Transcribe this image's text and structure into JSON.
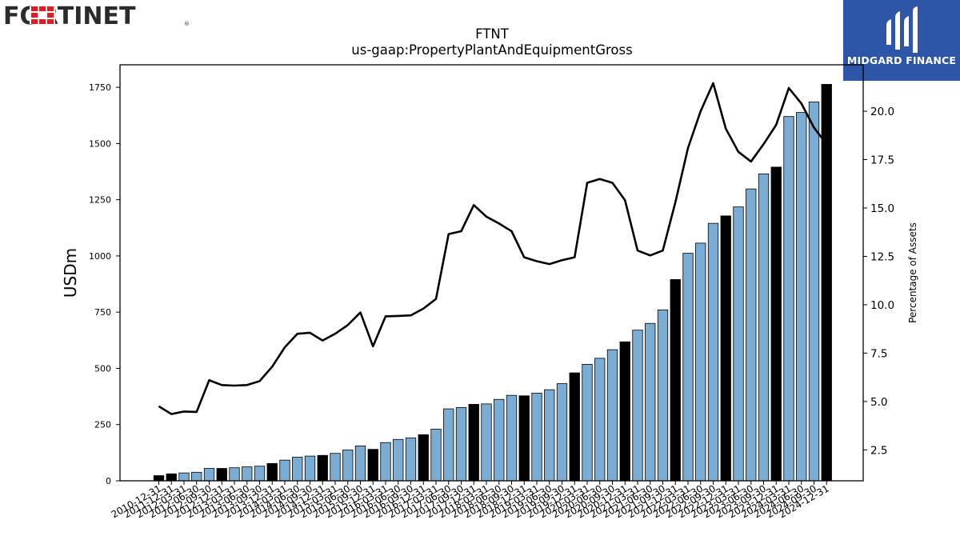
{
  "brand": {
    "name": "FORTINET",
    "registered": "®"
  },
  "badge": {
    "text": "MIDGARD FINANCE",
    "icon": "midgard-logo-icon"
  },
  "chart_data": {
    "type": "bar+line",
    "title": "FTNT",
    "subtitle": "us-gaap:PropertyPlantAndEquipmentGross",
    "ylabel": "USDm",
    "y2label": "Percentage of Assets",
    "ylim": [
      0,
      1850
    ],
    "y2lim": [
      0.9,
      22.4
    ],
    "yticks": [
      0,
      250,
      500,
      750,
      1000,
      1250,
      1500,
      1750
    ],
    "y2ticks": [
      2.5,
      5.0,
      7.5,
      10.0,
      12.5,
      15.0,
      17.5,
      20.0
    ],
    "colors": {
      "annual_bar": "#000000",
      "quarter_bar": "#7badd4",
      "line": "#000000"
    },
    "grid": false,
    "categories": [
      "2010-12-31",
      "2011-12-31",
      "2012-03-31",
      "2012-06-30",
      "2012-09-30",
      "2012-12-31",
      "2013-03-31",
      "2013-06-30",
      "2013-09-30",
      "2013-12-31",
      "2014-03-31",
      "2014-06-30",
      "2014-09-30",
      "2014-12-31",
      "2015-03-31",
      "2015-06-30",
      "2015-09-30",
      "2015-12-31",
      "2016-03-31",
      "2016-06-30",
      "2016-09-30",
      "2016-12-31",
      "2017-03-31",
      "2017-06-30",
      "2017-09-30",
      "2017-12-31",
      "2018-03-31",
      "2018-06-30",
      "2018-09-30",
      "2018-12-31",
      "2019-03-31",
      "2019-06-30",
      "2019-09-30",
      "2019-12-31",
      "2020-03-31",
      "2020-06-30",
      "2020-09-30",
      "2020-12-31",
      "2021-03-31",
      "2021-06-30",
      "2021-09-30",
      "2021-12-31",
      "2022-03-31",
      "2022-06-30",
      "2022-09-30",
      "2022-12-31",
      "2023-03-31",
      "2023-06-30",
      "2023-09-30",
      "2023-12-31",
      "2024-03-31",
      "2024-06-30",
      "2024-09-30",
      "2024-12-31"
    ],
    "series": [
      {
        "kind": "bar",
        "values": [
          23,
          31,
          35,
          38,
          55,
          55,
          58,
          62,
          65,
          77,
          92,
          105,
          110,
          113,
          122,
          137,
          155,
          140,
          170,
          184,
          191,
          205,
          230,
          320,
          326,
          340,
          342,
          362,
          380,
          378,
          390,
          405,
          432,
          480,
          518,
          545,
          583,
          618,
          670,
          700,
          760,
          895,
          1012,
          1057,
          1145,
          1178,
          1218,
          1298,
          1365,
          1395,
          1620,
          1638,
          1685,
          1763
        ],
        "annual": [
          true,
          true,
          false,
          false,
          false,
          true,
          false,
          false,
          false,
          true,
          false,
          false,
          false,
          true,
          false,
          false,
          false,
          true,
          false,
          false,
          false,
          true,
          false,
          false,
          false,
          true,
          false,
          false,
          false,
          true,
          false,
          false,
          false,
          true,
          false,
          false,
          false,
          true,
          false,
          false,
          false,
          true,
          false,
          false,
          false,
          true,
          false,
          false,
          false,
          true,
          false,
          false,
          false,
          true
        ]
      },
      {
        "kind": "line",
        "axis": "right",
        "values": [
          4.75,
          4.35,
          4.48,
          4.46,
          6.1,
          5.85,
          5.82,
          5.85,
          6.05,
          6.8,
          7.8,
          8.5,
          8.55,
          8.15,
          8.5,
          8.95,
          9.6,
          7.85,
          9.4,
          9.42,
          9.45,
          9.8,
          10.3,
          13.65,
          13.8,
          15.15,
          14.55,
          14.2,
          13.8,
          12.45,
          12.25,
          12.1,
          12.3,
          12.45,
          16.3,
          16.5,
          16.3,
          15.4,
          12.8,
          12.55,
          12.8,
          15.3,
          18.1,
          20.0,
          21.45,
          19.1,
          17.9,
          17.4,
          18.3,
          19.3,
          21.2,
          20.4,
          19.15,
          18.3
        ]
      }
    ]
  }
}
